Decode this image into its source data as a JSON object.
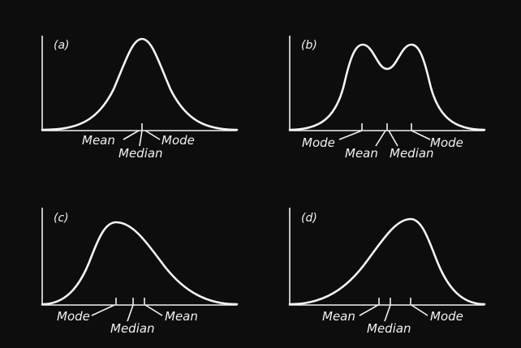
{
  "panels": [
    {
      "id": "a",
      "label": "(a)",
      "markers": [
        {
          "name": "mean",
          "text": "Mean"
        },
        {
          "name": "median",
          "text": "Median"
        },
        {
          "name": "mode",
          "text": "Mode"
        }
      ]
    },
    {
      "id": "b",
      "label": "(b)",
      "markers": [
        {
          "name": "mode-left",
          "text": "Mode"
        },
        {
          "name": "mean",
          "text": "Mean"
        },
        {
          "name": "median",
          "text": "Median"
        },
        {
          "name": "mode-right",
          "text": "Mode"
        }
      ]
    },
    {
      "id": "c",
      "label": "(c)",
      "markers": [
        {
          "name": "mode",
          "text": "Mode"
        },
        {
          "name": "median",
          "text": "Median"
        },
        {
          "name": "mean",
          "text": "Mean"
        }
      ]
    },
    {
      "id": "d",
      "label": "(d)",
      "markers": [
        {
          "name": "mean",
          "text": "Mean"
        },
        {
          "name": "median",
          "text": "Median"
        },
        {
          "name": "mode",
          "text": "Mode"
        }
      ]
    }
  ],
  "colors": {
    "background": "#0d0d0d",
    "ink": "#f0f0f0"
  }
}
